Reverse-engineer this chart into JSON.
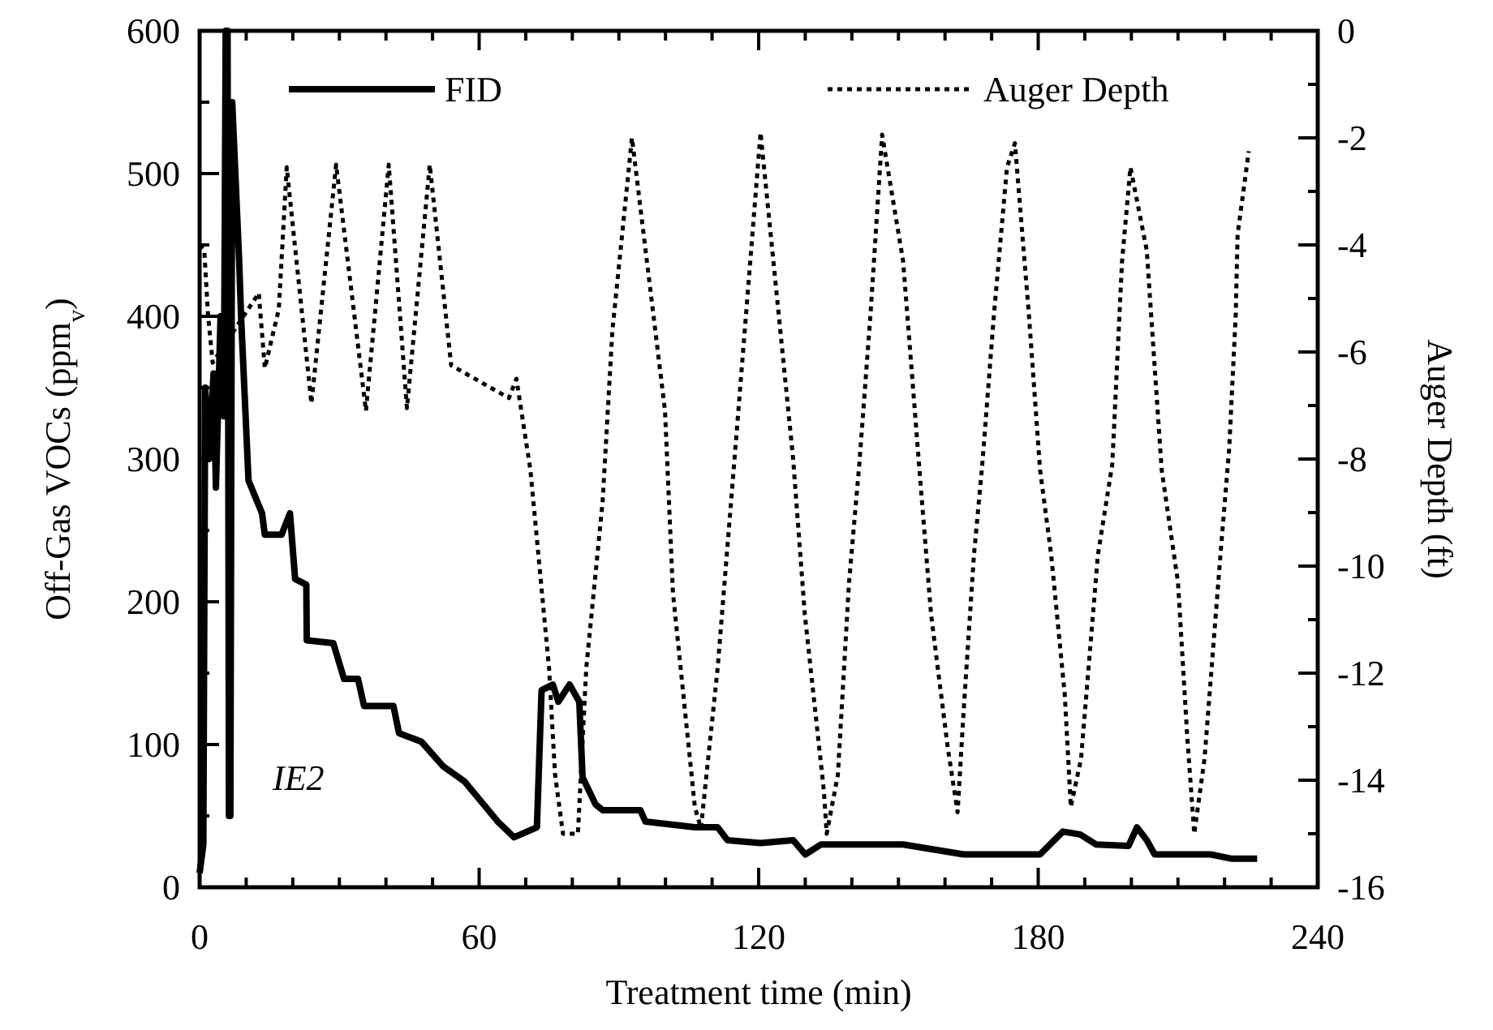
{
  "chart_data": {
    "type": "line",
    "xlabel": "Treatment time  (min)",
    "ylabel": "Off-Gas VOCs  (ppm$_{v}$)",
    "y2label": "Auger Depth  (ft)",
    "annotations": [
      "IE2"
    ],
    "xlim": [
      0,
      240
    ],
    "xticks": [
      0,
      {
        "value": 10,
        "label": null
      },
      {
        "value": 20,
        "label": null
      },
      {
        "value": 30,
        "label": null
      },
      {
        "value": 40,
        "label": null
      },
      {
        "value": 50,
        "label": null
      },
      60,
      {
        "value": 70,
        "label": null
      },
      {
        "value": 80,
        "label": null
      },
      {
        "value": 90,
        "label": null
      },
      {
        "value": 100,
        "label": null
      },
      {
        "value": 110,
        "label": null
      },
      120,
      {
        "value": 130,
        "label": null
      },
      {
        "value": 140,
        "label": null
      },
      {
        "value": 150,
        "label": null
      },
      {
        "value": 160,
        "label": null
      },
      {
        "value": 170,
        "label": null
      },
      180,
      {
        "value": 190,
        "label": null
      },
      {
        "value": 200,
        "label": null
      },
      {
        "value": 210,
        "label": null
      },
      {
        "value": 220,
        "label": null
      },
      {
        "value": 230,
        "label": null
      },
      240
    ],
    "ylim": [
      0,
      600
    ],
    "yticks": [
      0,
      {
        "value": 50,
        "label": null
      },
      100,
      {
        "value": 150,
        "label": null
      },
      200,
      {
        "value": 250,
        "label": null
      },
      300,
      {
        "value": 350,
        "label": null
      },
      400,
      {
        "value": 450,
        "label": null
      },
      500,
      {
        "value": 550,
        "label": null
      },
      600
    ],
    "y2lim": [
      -16,
      0
    ],
    "y2ticks": [
      -16,
      {
        "value": -15,
        "label": null
      },
      -14,
      {
        "value": -13,
        "label": null
      },
      -12,
      {
        "value": -11,
        "label": null
      },
      -10,
      {
        "value": -9,
        "label": null
      },
      -8,
      {
        "value": -7,
        "label": null
      },
      -6,
      {
        "value": -5,
        "label": null
      },
      -4,
      {
        "value": -3,
        "label": null
      },
      -2,
      {
        "value": -1,
        "label": null
      },
      0
    ],
    "grid": false,
    "legend": "top",
    "series": [
      {
        "name": "FID",
        "color": "#000000",
        "line_style": "solid",
        "x": [
          0,
          0.8,
          1.2,
          2,
          3,
          3.5,
          4.5,
          5.2,
          5.6,
          6,
          6.3,
          6.6,
          7,
          8.5,
          8.9,
          10.5,
          13.4,
          14,
          17.6,
          19.4,
          20.5,
          22.9,
          23,
          28.7,
          31,
          34,
          35.3,
          41.6,
          42.8,
          47.6,
          52.2,
          56.9,
          64,
          67.5,
          72.4,
          73.4,
          75.8,
          77,
          79.4,
          81.5,
          82.2,
          85,
          86.5,
          94.6,
          95.7,
          106.3,
          111.2,
          113.3,
          120.4,
          127.4,
          130,
          133.4,
          151,
          164,
          180.4,
          185.3,
          189,
          192.4,
          199.4,
          201.2,
          203.3,
          205,
          217,
          221.6,
          227
        ],
        "values": [
          10,
          30,
          350,
          300,
          360,
          280,
          400,
          330,
          600,
          600,
          50,
          50,
          550,
          438,
          400,
          285,
          262,
          247,
          247,
          262,
          216,
          212,
          173,
          171,
          146,
          146,
          127,
          127,
          108,
          102,
          85,
          74,
          46,
          35,
          42,
          138,
          142,
          130,
          142,
          130,
          77,
          58,
          54,
          54,
          46,
          42,
          42,
          33,
          31,
          33,
          23,
          30,
          30,
          23,
          23,
          39,
          37,
          30,
          29,
          42,
          33,
          23,
          23,
          20,
          20
        ]
      },
      {
        "name": "Auger Depth",
        "color": "#000000",
        "line_style": "dotted",
        "axis": "y2",
        "x": [
          0,
          1,
          1.8,
          2.8,
          12.7,
          14,
          17,
          18.7,
          24,
          29.3,
          35.7,
          40.6,
          44.5,
          49.4,
          54,
          66.4,
          68,
          71,
          75,
          76.3,
          78,
          81.2,
          83,
          86.5,
          88.6,
          92.8,
          99.9,
          101.6,
          106.3,
          107.6,
          111.2,
          115,
          118.2,
          120.4,
          127.4,
          129.9,
          134,
          134.6,
          137,
          139.4,
          141.6,
          144,
          146.5,
          151,
          154.6,
          157,
          160.6,
          162.7,
          164,
          166.2,
          168,
          170.5,
          173.3,
          175,
          178,
          180.4,
          182.8,
          185.7,
          187,
          189.2,
          192.8,
          195.9,
          198,
          199.8,
          203.3,
          206.5,
          210,
          212,
          213.5,
          215.7,
          219.2,
          221,
          222.4,
          222.8,
          225.2
        ],
        "values": [
          -4,
          -4.1,
          -5.3,
          -6.2,
          -4.9,
          -6.3,
          -5.2,
          -2.55,
          -6.96,
          -2.5,
          -7.1,
          -2.5,
          -7.05,
          -2.5,
          -6.25,
          -6.86,
          -6.5,
          -8.2,
          -11.9,
          -13.9,
          -15,
          -15,
          -11.9,
          -8.8,
          -5.6,
          -2,
          -7.1,
          -10.5,
          -14.5,
          -14.9,
          -11.9,
          -7.8,
          -4.3,
          -1.9,
          -8,
          -10.9,
          -14.2,
          -15,
          -13.9,
          -10.3,
          -8.1,
          -5.3,
          -1.94,
          -4.3,
          -8.3,
          -10.9,
          -13.4,
          -14.6,
          -12.7,
          -9.8,
          -8.1,
          -5.3,
          -2.55,
          -2.1,
          -5.3,
          -8.2,
          -9.8,
          -12.4,
          -14.5,
          -13.6,
          -9.8,
          -8.1,
          -4.3,
          -2.55,
          -4.1,
          -8.2,
          -10.3,
          -13.2,
          -15,
          -13.6,
          -9.7,
          -7.8,
          -5.3,
          -3.8,
          -2.25
        ]
      }
    ]
  }
}
